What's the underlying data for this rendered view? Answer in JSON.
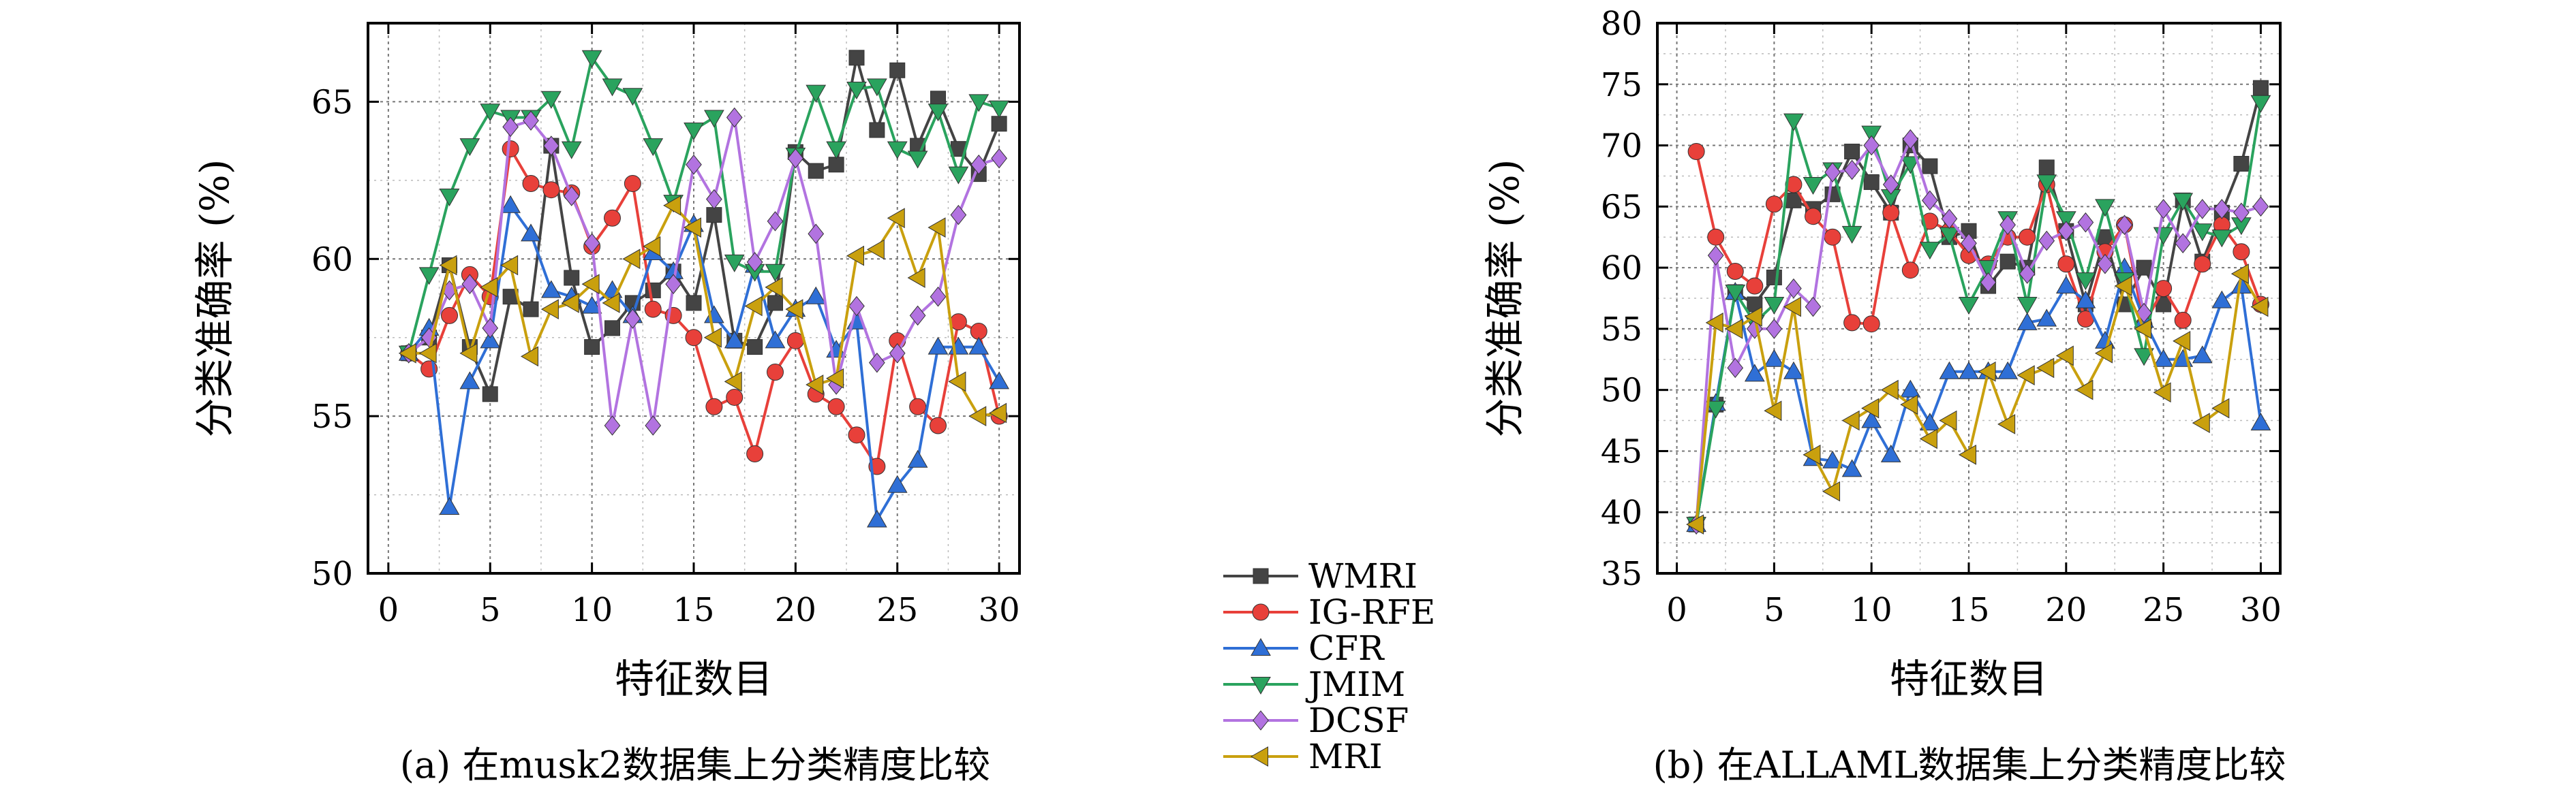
{
  "legend": {
    "position": "center-bottom, between panels"
  },
  "chart_data": [
    {
      "type": "line",
      "caption": "(a) 在musk2数据集上分类精度比较",
      "xlabel": "特征数目",
      "ylabel": "分类准确率 (%)",
      "xlim": [
        -1,
        31
      ],
      "ylim": [
        50,
        67.5
      ],
      "xticks": [
        0,
        5,
        10,
        15,
        20,
        25,
        30
      ],
      "yticks": [
        50,
        55,
        60,
        65
      ],
      "grid": true,
      "x": [
        1,
        2,
        3,
        4,
        5,
        6,
        7,
        8,
        9,
        10,
        11,
        12,
        13,
        14,
        15,
        16,
        17,
        18,
        19,
        20,
        21,
        22,
        23,
        24,
        25,
        26,
        27,
        28,
        29,
        30
      ],
      "series": [
        {
          "name": "WMRI",
          "color": "#444444",
          "marker": "square",
          "values": [
            57.0,
            57.5,
            59.8,
            57.2,
            55.7,
            58.8,
            58.4,
            63.6,
            59.4,
            57.2,
            57.8,
            58.6,
            59.0,
            59.6,
            58.6,
            61.4,
            57.4,
            57.2,
            58.6,
            63.4,
            62.8,
            63.0,
            66.4,
            64.1,
            66.0,
            63.6,
            65.1,
            63.5,
            62.7,
            64.3
          ]
        },
        {
          "name": "IG-RFE",
          "color": "#e8403a",
          "marker": "circle",
          "values": [
            57.0,
            56.5,
            58.2,
            59.5,
            58.8,
            63.5,
            62.4,
            62.2,
            62.1,
            60.4,
            61.3,
            62.4,
            58.4,
            58.2,
            57.5,
            55.3,
            55.6,
            53.8,
            56.4,
            57.4,
            55.7,
            55.3,
            54.4,
            53.4,
            57.4,
            55.3,
            54.7,
            58.0,
            57.7,
            55.0
          ]
        },
        {
          "name": "CFR",
          "color": "#2f6fd6",
          "marker": "triangle-up",
          "values": [
            57.0,
            57.8,
            52.1,
            56.1,
            57.4,
            61.7,
            60.8,
            59.0,
            58.8,
            58.5,
            59.0,
            58.2,
            60.2,
            59.6,
            61.1,
            58.2,
            57.4,
            59.8,
            57.4,
            58.4,
            58.8,
            57.1,
            58.0,
            51.7,
            52.8,
            53.6,
            57.2,
            57.2,
            57.2,
            56.1
          ]
        },
        {
          "name": "JMIM",
          "color": "#2aa35e",
          "marker": "triangle-down",
          "values": [
            57.0,
            59.5,
            62.0,
            63.6,
            64.7,
            64.5,
            64.5,
            65.1,
            63.5,
            66.4,
            65.5,
            65.2,
            63.6,
            61.8,
            64.1,
            64.5,
            59.9,
            59.6,
            59.6,
            63.3,
            65.3,
            63.5,
            65.4,
            65.5,
            63.5,
            63.2,
            64.7,
            62.7,
            65.0,
            64.8
          ]
        },
        {
          "name": "DCSF",
          "color": "#b273e0",
          "marker": "diamond",
          "values": [
            57.0,
            57.5,
            59.0,
            59.2,
            57.8,
            64.2,
            64.4,
            63.6,
            62.0,
            60.5,
            54.7,
            58.1,
            54.7,
            59.2,
            63.0,
            61.9,
            64.5,
            59.9,
            61.2,
            63.2,
            60.8,
            56.0,
            58.5,
            56.7,
            57.0,
            58.2,
            58.8,
            61.4,
            63.0,
            63.2
          ]
        },
        {
          "name": "MRI",
          "color": "#c9a00e",
          "marker": "triangle-left",
          "values": [
            57.0,
            57.0,
            59.8,
            57.0,
            59.1,
            59.8,
            56.9,
            58.4,
            58.6,
            59.2,
            58.6,
            60.0,
            60.4,
            61.7,
            61.0,
            57.5,
            56.1,
            58.5,
            59.1,
            58.4,
            56.0,
            56.2,
            60.1,
            60.3,
            61.3,
            59.4,
            61.0,
            56.1,
            55.0,
            55.1
          ]
        }
      ]
    },
    {
      "type": "line",
      "caption": "(b) 在ALLAML数据集上分类精度比较",
      "xlabel": "特征数目",
      "ylabel": "分类准确率 (%)",
      "xlim": [
        -1,
        31
      ],
      "ylim": [
        35,
        80
      ],
      "xticks": [
        0,
        5,
        10,
        15,
        20,
        25,
        30
      ],
      "yticks": [
        35,
        40,
        45,
        50,
        55,
        60,
        65,
        70,
        75,
        80
      ],
      "grid": true,
      "x": [
        1,
        2,
        3,
        4,
        5,
        6,
        7,
        8,
        9,
        10,
        11,
        12,
        13,
        14,
        15,
        16,
        17,
        18,
        19,
        20,
        21,
        22,
        23,
        24,
        25,
        26,
        27,
        28,
        29,
        30
      ],
      "series": [
        {
          "name": "WMRI",
          "color": "#444444",
          "marker": "square",
          "values": [
            39.0,
            48.8,
            58.0,
            57.0,
            59.2,
            65.5,
            64.8,
            66.0,
            69.5,
            67.0,
            64.5,
            70.0,
            68.3,
            62.5,
            63.0,
            58.5,
            60.5,
            60.0,
            68.2,
            63.0,
            57.0,
            62.5,
            57.0,
            60.0,
            57.0,
            65.5,
            60.5,
            64.5,
            68.5,
            74.7
          ]
        },
        {
          "name": "IG-RFE",
          "color": "#e8403a",
          "marker": "circle",
          "values": [
            69.5,
            62.5,
            59.7,
            58.5,
            65.2,
            66.8,
            64.2,
            62.5,
            55.5,
            55.4,
            64.5,
            59.8,
            63.8,
            63.0,
            61.0,
            60.3,
            62.5,
            62.5,
            66.8,
            60.3,
            55.8,
            61.3,
            63.5,
            55.3,
            58.3,
            55.7,
            60.3,
            63.5,
            61.3,
            57.0
          ]
        },
        {
          "name": "CFR",
          "color": "#2f6fd6",
          "marker": "triangle-up",
          "values": [
            39.0,
            48.9,
            58.0,
            51.3,
            52.5,
            51.5,
            44.4,
            44.2,
            43.5,
            47.5,
            44.7,
            50.0,
            47.3,
            51.5,
            51.5,
            51.5,
            51.5,
            55.5,
            55.8,
            58.5,
            57.3,
            54.0,
            60.0,
            55.7,
            52.5,
            52.5,
            52.8,
            57.3,
            58.5,
            47.3
          ]
        },
        {
          "name": "JMIM",
          "color": "#2aa35e",
          "marker": "triangle-down",
          "values": [
            39.0,
            48.5,
            58.0,
            55.5,
            57.0,
            72.0,
            66.8,
            68.0,
            62.8,
            71.0,
            65.8,
            68.5,
            61.5,
            62.7,
            57.0,
            60.0,
            64.0,
            57.0,
            67.0,
            64.0,
            59.0,
            65.0,
            59.0,
            52.8,
            62.7,
            65.5,
            63.0,
            62.5,
            63.5,
            73.5
          ]
        },
        {
          "name": "DCSF",
          "color": "#b273e0",
          "marker": "diamond",
          "values": [
            39.0,
            61.0,
            51.8,
            55.0,
            55.0,
            58.3,
            56.8,
            67.8,
            68.0,
            70.0,
            66.8,
            70.5,
            65.5,
            64.0,
            62.0,
            58.8,
            63.5,
            59.5,
            62.2,
            63.0,
            63.7,
            60.3,
            63.5,
            56.3,
            64.8,
            62.0,
            64.8,
            64.8,
            64.5,
            65.0
          ]
        },
        {
          "name": "MRI",
          "color": "#c9a00e",
          "marker": "triangle-left",
          "values": [
            39.0,
            55.5,
            55.0,
            56.0,
            48.3,
            56.8,
            44.7,
            41.7,
            47.5,
            48.5,
            50.0,
            48.8,
            46.0,
            47.5,
            44.7,
            51.5,
            47.2,
            51.2,
            51.8,
            52.8,
            50.0,
            53.0,
            58.5,
            55.0,
            49.8,
            54.0,
            47.3,
            48.5,
            59.5,
            56.8
          ]
        }
      ]
    }
  ]
}
